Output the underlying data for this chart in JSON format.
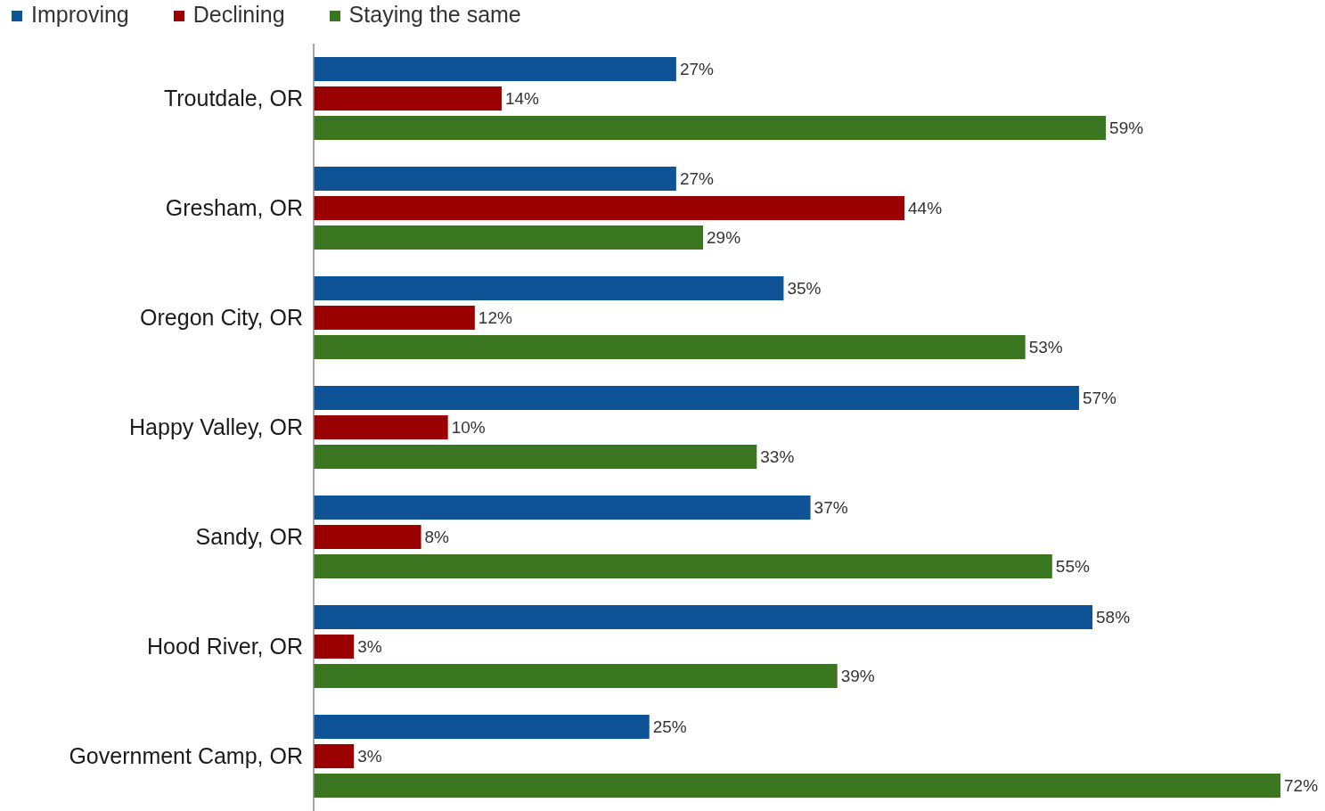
{
  "chart_data": {
    "type": "bar",
    "orientation": "horizontal",
    "legend": "top left",
    "tick_labels": "y",
    "categories": [
      "Troutdale, OR",
      "Gresham, OR",
      "Oregon City, OR",
      "Happy Valley, OR",
      "Sandy, OR",
      "Hood River, OR",
      "Government Camp, OR"
    ],
    "series": [
      {
        "name": "Improving",
        "color": "#0e5395",
        "values": [
          27,
          27,
          35,
          57,
          37,
          58,
          25
        ],
        "value_labels": [
          "27%",
          "27%",
          "35%",
          "57%",
          "37%",
          "58%",
          "25%"
        ]
      },
      {
        "name": "Declining",
        "color": "#9b0000",
        "values": [
          14,
          44,
          12,
          10,
          8,
          3,
          3
        ],
        "value_labels": [
          "14%",
          "44%",
          "12%",
          "10%",
          "8%",
          "3%",
          "3%"
        ]
      },
      {
        "name": "Staying the same",
        "color": "#3a761f",
        "values": [
          59,
          29,
          53,
          33,
          55,
          39,
          72
        ],
        "value_labels": [
          "59%",
          "29%",
          "53%",
          "33%",
          "55%",
          "39%",
          "72%"
        ]
      }
    ]
  }
}
